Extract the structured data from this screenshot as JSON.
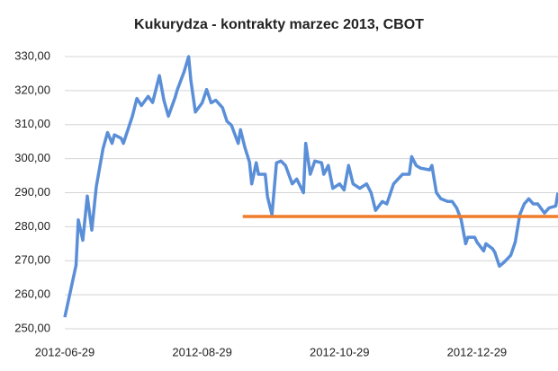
{
  "chart_data": {
    "type": "line",
    "title": "Kukurydza - kontrakty marzec 2013, CBOT",
    "x": [
      "2012-06-29",
      "2012-07-01",
      "2012-07-04",
      "2012-07-05",
      "2012-07-07",
      "2012-07-09",
      "2012-07-11",
      "2012-07-13",
      "2012-07-16",
      "2012-07-18",
      "2012-07-20",
      "2012-07-21",
      "2012-07-24",
      "2012-07-25",
      "2012-07-27",
      "2012-07-29",
      "2012-07-31",
      "2012-08-02",
      "2012-08-05",
      "2012-08-07",
      "2012-08-10",
      "2012-08-12",
      "2012-08-14",
      "2012-08-17",
      "2012-08-18",
      "2012-08-21",
      "2012-08-23",
      "2012-08-24",
      "2012-08-26",
      "2012-08-29",
      "2012-08-31",
      "2012-09-02",
      "2012-09-04",
      "2012-09-07",
      "2012-09-09",
      "2012-09-11",
      "2012-09-14",
      "2012-09-15",
      "2012-09-17",
      "2012-09-19",
      "2012-09-20",
      "2012-09-22",
      "2012-09-23",
      "2012-09-26",
      "2012-09-27",
      "2012-09-29",
      "2012-10-01",
      "2012-10-03",
      "2012-10-05",
      "2012-10-08",
      "2012-10-10",
      "2012-10-13",
      "2012-10-14",
      "2012-10-16",
      "2012-10-18",
      "2012-10-21",
      "2012-10-22",
      "2012-10-24",
      "2012-10-26",
      "2012-10-29",
      "2012-10-31",
      "2012-11-02",
      "2012-11-04",
      "2012-11-07",
      "2012-11-10",
      "2012-11-12",
      "2012-11-14",
      "2012-11-17",
      "2012-11-19",
      "2012-11-22",
      "2012-11-24",
      "2012-11-26",
      "2012-11-29",
      "2012-11-30",
      "2012-12-02",
      "2012-12-04",
      "2012-12-08",
      "2012-12-09",
      "2012-12-11",
      "2012-12-13",
      "2012-12-16",
      "2012-12-18",
      "2012-12-20",
      "2012-12-22",
      "2012-12-24",
      "2012-12-25",
      "2012-12-28",
      "2012-12-29",
      "2013-01-01",
      "2013-01-02",
      "2013-01-05",
      "2013-01-06",
      "2013-01-08",
      "2013-01-10",
      "2013-01-13",
      "2013-01-15",
      "2013-01-17",
      "2013-01-19",
      "2013-01-21",
      "2013-01-23",
      "2013-01-25",
      "2013-01-28",
      "2013-01-30",
      "2013-02-02",
      "2013-02-03"
    ],
    "series": [
      {
        "color": "#5a8fd8",
        "values": [
          253.4,
          259.5,
          268.7,
          282,
          276,
          289,
          279,
          291.8,
          303,
          307.7,
          304.5,
          307,
          306,
          304.5,
          308.5,
          312.5,
          317.7,
          315.6,
          318.3,
          316.5,
          324.4,
          317.2,
          312.5,
          318,
          320.3,
          325.6,
          330,
          322.9,
          313.7,
          316.4,
          320.3,
          316.4,
          317.2,
          315,
          311,
          309.8,
          304.5,
          308.5,
          303.2,
          299,
          292.6,
          298.8,
          295.4,
          295.4,
          288.8,
          283.5,
          298.8,
          299.3,
          298,
          292.6,
          294,
          290,
          304.5,
          295.4,
          299.3,
          298.8,
          295.4,
          298,
          291.3,
          292.6,
          290.8,
          298,
          292.6,
          291.3,
          292.6,
          290,
          284.8,
          287.4,
          286.7,
          292.6,
          294,
          295.4,
          295.4,
          300.6,
          298,
          297.2,
          296.7,
          298,
          290,
          288.2,
          287.4,
          287.4,
          285.5,
          282.1,
          275,
          276.9,
          276.9,
          275.5,
          272.9,
          275,
          273.5,
          272.4,
          268.4,
          269.5,
          271.6,
          275.5,
          283.5,
          286.7,
          288.2,
          286.7,
          286.7,
          284,
          285.5,
          286.1,
          290
        ]
      },
      {
        "color": "#f07d2b",
        "x": [
          "2012-09-16",
          "2013-02-03"
        ],
        "values": [
          283,
          283
        ]
      }
    ],
    "xlim": [
      "2012-06-29",
      "2013-02-03"
    ],
    "xticks": [
      "2012-06-29",
      "2012-08-29",
      "2012-10-29",
      "2012-12-29"
    ],
    "ylim": [
      250,
      330
    ],
    "yticks": [
      {
        "value": 250,
        "label": "250,00"
      },
      {
        "value": 260,
        "label": "260,00"
      },
      {
        "value": 270,
        "label": "270,00"
      },
      {
        "value": 280,
        "label": "280,00"
      },
      {
        "value": 290,
        "label": "290,00"
      },
      {
        "value": 300,
        "label": "300,00"
      },
      {
        "value": 310,
        "label": "310,00"
      },
      {
        "value": 320,
        "label": "320,00"
      },
      {
        "value": 330,
        "label": "330,00"
      }
    ],
    "grid": true
  }
}
